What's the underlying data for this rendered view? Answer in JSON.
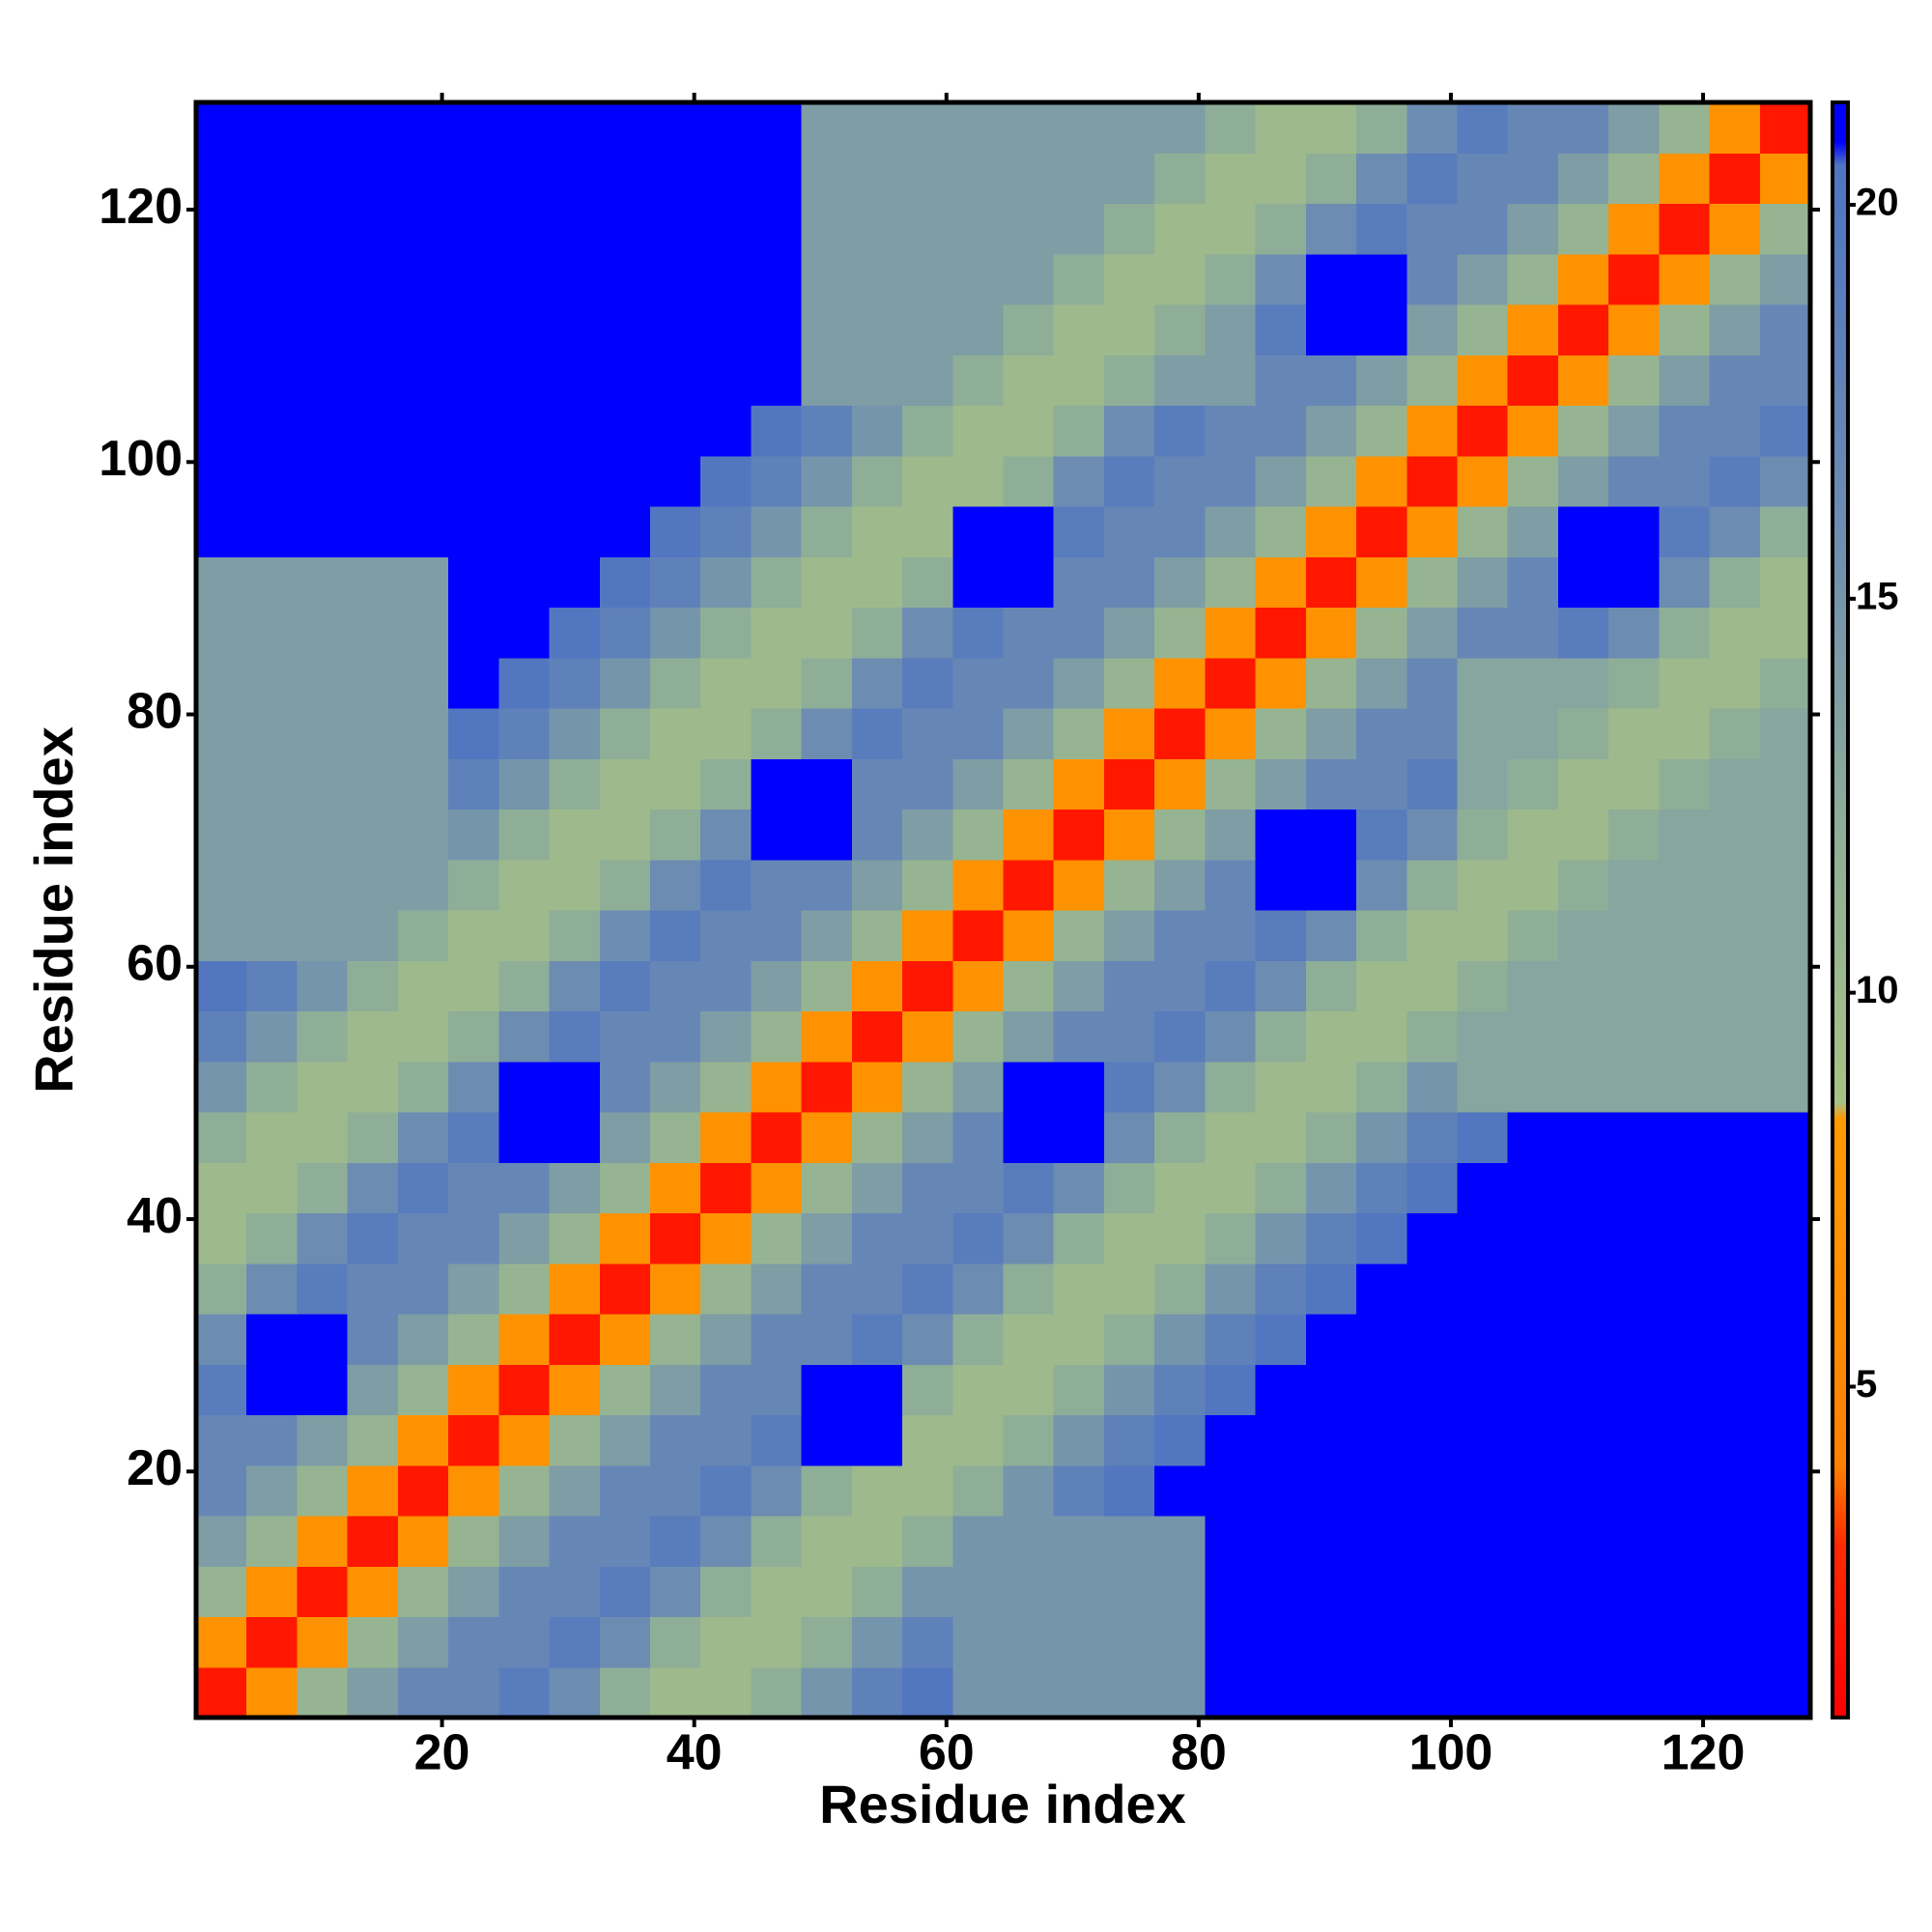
{
  "chart_data": {
    "type": "heatmap",
    "xlabel": "Residue index",
    "ylabel": "Residue index",
    "xlim": [
      0.5,
      128.5
    ],
    "ylim": [
      0.5,
      128.5
    ],
    "xticks": [
      20,
      40,
      60,
      80,
      100,
      120
    ],
    "yticks": [
      20,
      40,
      60,
      80,
      100,
      120
    ],
    "colorbar": {
      "lim": [
        0.8,
        21.3
      ],
      "ticks": [
        5,
        10,
        15,
        20
      ],
      "stops": [
        {
          "value": 0.8,
          "color": "#ff0000"
        },
        {
          "value": 3,
          "color": "#ff2a00"
        },
        {
          "value": 4,
          "color": "#ff8000"
        },
        {
          "value": 8.4,
          "color": "#ff9a00"
        },
        {
          "value": 8.6,
          "color": "#a9c184"
        },
        {
          "value": 12,
          "color": "#8fae98"
        },
        {
          "value": 16,
          "color": "#6c8cb2"
        },
        {
          "value": 20.5,
          "color": "#4f74c2"
        },
        {
          "value": 20.8,
          "color": "#0000ff"
        },
        {
          "value": 21.3,
          "color": "#0000ff"
        }
      ]
    },
    "z": [
      [
        2,
        7,
        11,
        14,
        17,
        17,
        19,
        16,
        12,
        10,
        10,
        12,
        15,
        18,
        20,
        15,
        15,
        15,
        15,
        15,
        21,
        21,
        21,
        21,
        21,
        21,
        21,
        21,
        21,
        21,
        21,
        21
      ],
      [
        7,
        2,
        7,
        11,
        14,
        17,
        17,
        19,
        16,
        12,
        10,
        10,
        12,
        15,
        18,
        15,
        15,
        15,
        15,
        15,
        21,
        21,
        21,
        21,
        21,
        21,
        21,
        21,
        21,
        21,
        21,
        21
      ],
      [
        11,
        7,
        2,
        7,
        11,
        14,
        17,
        17,
        19,
        16,
        12,
        10,
        10,
        12,
        15,
        15,
        15,
        15,
        15,
        15,
        21,
        21,
        21,
        21,
        21,
        21,
        21,
        21,
        21,
        21,
        21,
        21
      ],
      [
        14,
        11,
        7,
        2,
        7,
        11,
        14,
        17,
        17,
        19,
        16,
        12,
        10,
        10,
        12,
        15,
        15,
        15,
        15,
        15,
        21,
        21,
        21,
        21,
        21,
        21,
        21,
        21,
        21,
        21,
        21,
        21
      ],
      [
        17,
        14,
        11,
        7,
        2,
        7,
        11,
        14,
        17,
        17,
        19,
        16,
        12,
        10,
        10,
        12,
        15,
        18,
        20,
        21,
        21,
        21,
        21,
        21,
        21,
        21,
        21,
        21,
        21,
        21,
        21,
        21
      ],
      [
        17,
        17,
        14,
        11,
        7,
        2,
        7,
        11,
        14,
        17,
        17,
        19,
        21,
        21,
        10,
        10,
        12,
        15,
        18,
        20,
        21,
        21,
        21,
        21,
        21,
        21,
        21,
        21,
        21,
        21,
        21,
        21
      ],
      [
        19,
        21,
        21,
        14,
        11,
        7,
        2,
        7,
        11,
        14,
        17,
        17,
        21,
        21,
        12,
        10,
        10,
        12,
        15,
        18,
        20,
        21,
        21,
        21,
        21,
        21,
        21,
        21,
        21,
        21,
        21,
        21
      ],
      [
        16,
        21,
        21,
        17,
        14,
        11,
        7,
        2,
        7,
        11,
        14,
        17,
        17,
        19,
        16,
        12,
        10,
        10,
        12,
        15,
        18,
        20,
        21,
        21,
        21,
        21,
        21,
        21,
        21,
        21,
        21,
        21
      ],
      [
        12,
        16,
        19,
        17,
        17,
        14,
        11,
        7,
        2,
        7,
        11,
        14,
        17,
        17,
        19,
        16,
        12,
        10,
        10,
        12,
        15,
        18,
        20,
        21,
        21,
        21,
        21,
        21,
        21,
        21,
        21,
        21
      ],
      [
        10,
        12,
        16,
        19,
        17,
        17,
        14,
        11,
        7,
        2,
        7,
        11,
        14,
        17,
        17,
        19,
        16,
        12,
        10,
        10,
        12,
        15,
        18,
        20,
        21,
        21,
        21,
        21,
        21,
        21,
        21,
        21
      ],
      [
        10,
        10,
        12,
        16,
        19,
        17,
        17,
        14,
        11,
        7,
        2,
        7,
        11,
        14,
        17,
        17,
        19,
        16,
        12,
        10,
        10,
        12,
        15,
        18,
        20,
        21,
        21,
        21,
        21,
        21,
        21,
        21
      ],
      [
        12,
        10,
        10,
        12,
        16,
        19,
        21,
        21,
        14,
        11,
        7,
        2,
        7,
        11,
        14,
        17,
        21,
        21,
        16,
        12,
        10,
        10,
        12,
        15,
        18,
        20,
        21,
        21,
        21,
        21,
        21,
        21
      ],
      [
        15,
        12,
        10,
        10,
        12,
        16,
        21,
        21,
        17,
        14,
        11,
        7,
        2,
        7,
        11,
        14,
        21,
        21,
        19,
        16,
        12,
        10,
        10,
        12,
        15,
        13,
        13,
        13,
        13,
        13,
        13,
        13
      ],
      [
        18,
        15,
        12,
        10,
        10,
        12,
        16,
        19,
        17,
        17,
        14,
        11,
        7,
        2,
        7,
        11,
        14,
        17,
        17,
        19,
        16,
        12,
        10,
        10,
        12,
        13,
        13,
        13,
        13,
        13,
        13,
        13
      ],
      [
        20,
        18,
        15,
        12,
        10,
        10,
        12,
        16,
        19,
        17,
        17,
        14,
        11,
        7,
        2,
        7,
        11,
        14,
        17,
        17,
        19,
        16,
        12,
        10,
        10,
        12,
        13,
        13,
        13,
        13,
        13,
        13
      ],
      [
        14,
        14,
        14,
        14,
        12,
        10,
        10,
        12,
        16,
        19,
        17,
        17,
        14,
        11,
        7,
        2,
        7,
        11,
        14,
        17,
        17,
        19,
        16,
        12,
        10,
        10,
        12,
        13,
        13,
        13,
        13,
        13
      ],
      [
        14,
        14,
        14,
        14,
        14,
        12,
        10,
        10,
        12,
        16,
        19,
        17,
        17,
        14,
        11,
        7,
        2,
        7,
        11,
        14,
        17,
        21,
        21,
        16,
        12,
        10,
        10,
        12,
        13,
        13,
        13,
        13
      ],
      [
        14,
        14,
        14,
        14,
        14,
        15,
        12,
        10,
        10,
        12,
        16,
        21,
        21,
        17,
        14,
        11,
        7,
        2,
        7,
        11,
        14,
        21,
        21,
        19,
        16,
        12,
        10,
        10,
        12,
        13,
        13,
        13
      ],
      [
        14,
        14,
        14,
        14,
        14,
        18,
        15,
        12,
        10,
        10,
        12,
        21,
        21,
        17,
        17,
        14,
        11,
        7,
        2,
        7,
        11,
        14,
        17,
        17,
        19,
        13,
        12,
        10,
        10,
        12,
        13,
        13
      ],
      [
        14,
        14,
        14,
        14,
        14,
        20,
        18,
        15,
        12,
        10,
        10,
        12,
        16,
        19,
        17,
        17,
        14,
        11,
        7,
        2,
        7,
        11,
        14,
        17,
        17,
        13,
        13,
        12,
        10,
        10,
        12,
        13
      ],
      [
        14,
        14,
        14,
        14,
        14,
        21,
        20,
        18,
        15,
        12,
        10,
        10,
        12,
        16,
        19,
        17,
        17,
        14,
        11,
        7,
        2,
        7,
        11,
        14,
        17,
        13,
        13,
        13,
        12,
        10,
        10,
        12
      ],
      [
        14,
        14,
        14,
        14,
        14,
        21,
        21,
        20,
        18,
        15,
        12,
        10,
        10,
        12,
        16,
        19,
        17,
        17,
        14,
        11,
        7,
        2,
        7,
        11,
        14,
        17,
        17,
        19,
        16,
        12,
        10,
        10
      ],
      [
        14,
        14,
        14,
        14,
        14,
        21,
        21,
        21,
        20,
        18,
        15,
        12,
        10,
        10,
        12,
        21,
        21,
        17,
        17,
        14,
        11,
        7,
        2,
        7,
        11,
        14,
        17,
        21,
        21,
        16,
        12,
        10
      ],
      [
        21,
        21,
        21,
        21,
        21,
        21,
        21,
        21,
        21,
        20,
        18,
        15,
        12,
        10,
        10,
        21,
        21,
        19,
        17,
        17,
        14,
        11,
        7,
        2,
        7,
        11,
        14,
        21,
        21,
        19,
        16,
        12
      ],
      [
        21,
        21,
        21,
        21,
        21,
        21,
        21,
        21,
        21,
        21,
        20,
        18,
        15,
        12,
        10,
        10,
        12,
        16,
        19,
        17,
        17,
        14,
        11,
        7,
        2,
        7,
        11,
        14,
        17,
        17,
        19,
        16
      ],
      [
        21,
        21,
        21,
        21,
        21,
        21,
        21,
        21,
        21,
        21,
        21,
        20,
        18,
        15,
        12,
        10,
        10,
        12,
        16,
        19,
        17,
        17,
        14,
        11,
        7,
        2,
        7,
        11,
        14,
        17,
        17,
        19
      ],
      [
        21,
        21,
        21,
        21,
        21,
        21,
        21,
        21,
        21,
        21,
        21,
        21,
        14,
        14,
        14,
        12,
        10,
        10,
        12,
        14,
        14,
        17,
        17,
        14,
        11,
        7,
        2,
        7,
        11,
        14,
        17,
        17
      ],
      [
        21,
        21,
        21,
        21,
        21,
        21,
        21,
        21,
        21,
        21,
        21,
        21,
        14,
        14,
        14,
        14,
        12,
        10,
        10,
        12,
        14,
        19,
        21,
        21,
        14,
        11,
        7,
        2,
        7,
        11,
        14,
        17
      ],
      [
        21,
        21,
        21,
        21,
        21,
        21,
        21,
        21,
        21,
        21,
        21,
        21,
        14,
        14,
        14,
        14,
        14,
        12,
        10,
        10,
        12,
        16,
        21,
        21,
        17,
        14,
        11,
        7,
        2,
        7,
        11,
        14
      ],
      [
        21,
        21,
        21,
        21,
        21,
        21,
        21,
        21,
        21,
        21,
        21,
        21,
        14,
        14,
        14,
        14,
        14,
        14,
        12,
        10,
        10,
        12,
        16,
        19,
        17,
        17,
        14,
        11,
        7,
        2,
        7,
        11
      ],
      [
        21,
        21,
        21,
        21,
        21,
        21,
        21,
        21,
        21,
        21,
        21,
        21,
        14,
        14,
        14,
        14,
        14,
        14,
        14,
        12,
        10,
        10,
        12,
        16,
        19,
        17,
        17,
        14,
        11,
        7,
        2,
        7
      ],
      [
        21,
        21,
        21,
        21,
        21,
        21,
        21,
        21,
        21,
        21,
        21,
        21,
        14,
        14,
        14,
        14,
        14,
        14,
        14,
        14,
        12,
        10,
        10,
        12,
        16,
        19,
        17,
        17,
        14,
        11,
        7,
        2
      ]
    ]
  }
}
